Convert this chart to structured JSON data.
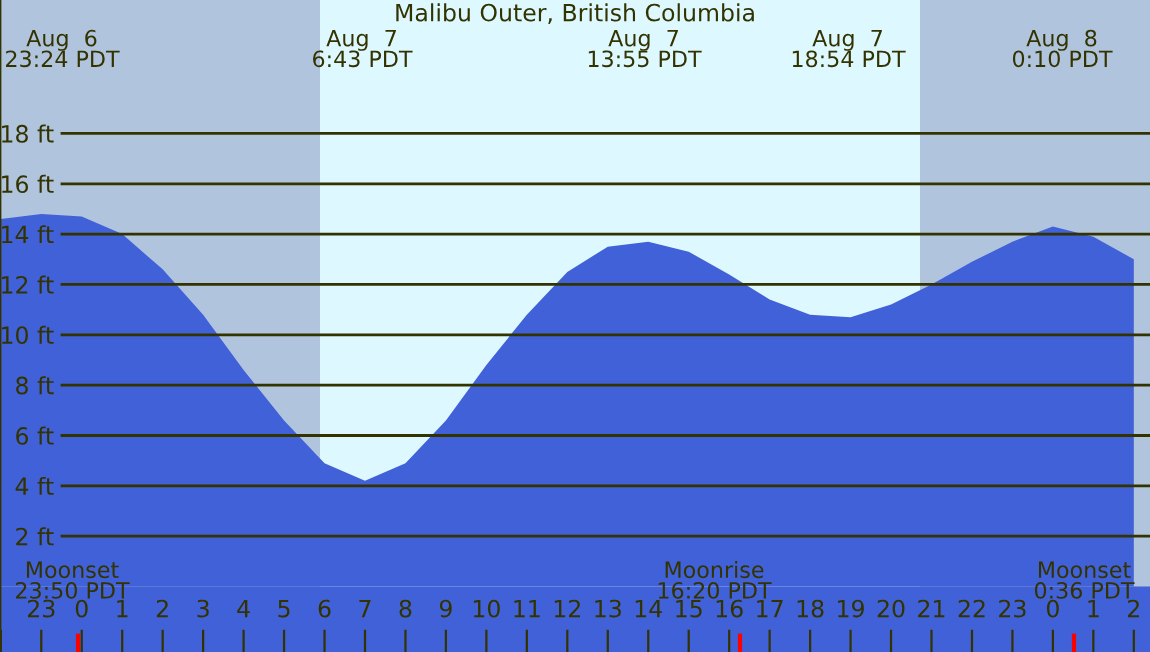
{
  "chart_data": {
    "type": "area",
    "title": "Malibu Outer, British Columbia",
    "categories": [
      null,
      "23",
      "0",
      "1",
      "2",
      "3",
      "4",
      "5",
      "6",
      "7",
      "8",
      "9",
      "10",
      "11",
      "12",
      "13",
      "14",
      "15",
      "16",
      "17",
      "18",
      "19",
      "20",
      "21",
      "22",
      "23",
      "0",
      "1",
      "2"
    ],
    "series": [
      {
        "color": "#4161d8",
        "values": [
          14.6,
          14.8,
          14.7,
          14.0,
          12.6,
          10.8,
          8.6,
          6.6,
          4.9,
          4.2,
          4.9,
          6.6,
          8.8,
          10.8,
          12.5,
          13.5,
          13.7,
          13.3,
          12.4,
          11.4,
          10.8,
          10.7,
          11.2,
          12.0,
          12.9,
          13.7,
          14.3,
          13.9,
          13.0
        ]
      }
    ],
    "ylim": [
      -2.6,
      23.3
    ],
    "yticks": [
      {
        "value": 2,
        "label": "2 ft"
      },
      {
        "value": 4,
        "label": "4 ft"
      },
      {
        "value": 6,
        "label": "6 ft"
      },
      {
        "value": 8,
        "label": "8 ft"
      },
      {
        "value": 10,
        "label": "10 ft"
      },
      {
        "value": 12,
        "label": "12 ft"
      },
      {
        "value": 14,
        "label": "14 ft"
      },
      {
        "value": 16,
        "label": "16 ft"
      },
      {
        "value": 18,
        "label": "18 ft"
      }
    ],
    "grid": "y",
    "annotations": [
      "Aug  6\n23:24 PDT",
      "Aug  7\n6:43 PDT",
      "Aug  7\n13:55 PDT",
      "Aug  7\n18:54 PDT",
      "Aug  8\n0:10 PDT",
      "Moonset\n23:50 PDT",
      "Moonrise\n16:20 PDT",
      "Moonset\n0:36 PDT"
    ]
  }
}
